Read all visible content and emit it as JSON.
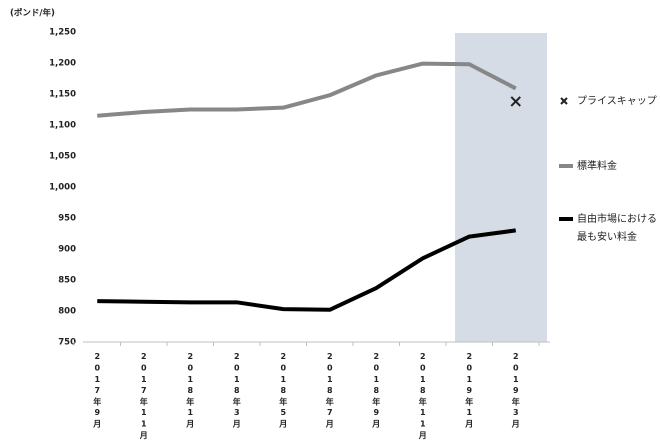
{
  "chart_data": {
    "type": "line",
    "y_label": "(ポンド/年)",
    "categories": [
      "2017年9月",
      "2017年11月",
      "2018年1月",
      "2018年3月",
      "2018年5月",
      "2018年7月",
      "2018年9月",
      "2018年11月",
      "2019年1月",
      "2019年3月"
    ],
    "series": [
      {
        "name": "プライスキャップ",
        "color": "#222222",
        "marker": "x",
        "values": [
          null,
          null,
          null,
          null,
          null,
          null,
          null,
          null,
          null,
          1138
        ]
      },
      {
        "name": "標準料金",
        "color": "#878787",
        "values": [
          1115,
          1121,
          1125,
          1125,
          1128,
          1148,
          1180,
          1199,
          1198,
          1159
        ]
      },
      {
        "name": [
          "自由市場における",
          "最も安い料金"
        ],
        "color": "#000000",
        "values": [
          816,
          815,
          814,
          814,
          803,
          802,
          837,
          885,
          920,
          930
        ]
      }
    ],
    "ylim": [
      750,
      1250
    ],
    "yticks": [
      750,
      800,
      850,
      900,
      950,
      {
        "value": 1000,
        "label": "1,000"
      },
      {
        "value": 1050,
        "label": "1,050"
      },
      {
        "value": 1100,
        "label": "1,100"
      },
      {
        "value": 1150,
        "label": "1,150"
      },
      {
        "value": 1200,
        "label": "1,200"
      },
      {
        "value": 1250,
        "label": "1,250"
      }
    ],
    "grid": false
  }
}
